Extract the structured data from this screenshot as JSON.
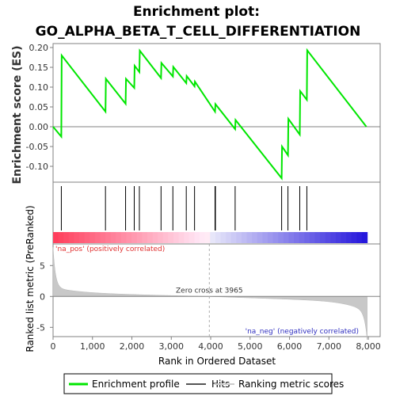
{
  "chart_data": {
    "type": "line",
    "title_line1": "Enrichment plot:",
    "title_line2": "GO_ALPHA_BETA_T_CELL_DIFFERENTIATION",
    "top_panel": {
      "ylabel": "Enrichment score (ES)",
      "ylim": [
        -0.14,
        0.21
      ],
      "yticks": [
        "0.20",
        "0.15",
        "0.10",
        "0.05",
        "0.00",
        "-0.05",
        "-0.10"
      ],
      "ytick_values": [
        0.2,
        0.15,
        0.1,
        0.05,
        0.0,
        -0.05,
        -0.1
      ],
      "series": [
        {
          "name": "Enrichment profile",
          "color": "#00e600",
          "x": [
            0,
            210,
            220,
            1330,
            1340,
            1840,
            1850,
            2060,
            2070,
            2190,
            2200,
            2740,
            2750,
            3040,
            3050,
            3380,
            3390,
            3590,
            3600,
            4110,
            4120,
            4620,
            4630,
            5800,
            5810,
            5960,
            5970,
            6260,
            6270,
            6440,
            6450,
            7950
          ],
          "y": [
            0.0,
            -0.025,
            0.18,
            0.038,
            0.121,
            0.058,
            0.121,
            0.098,
            0.154,
            0.138,
            0.192,
            0.123,
            0.161,
            0.127,
            0.151,
            0.11,
            0.128,
            0.102,
            0.114,
            0.038,
            0.057,
            -0.006,
            0.017,
            -0.13,
            -0.05,
            -0.072,
            0.02,
            -0.02,
            0.09,
            0.068,
            0.193,
            0.0
          ]
        }
      ]
    },
    "hits": [
      210,
      1330,
      1840,
      2060,
      2190,
      2740,
      3040,
      3380,
      3590,
      4110,
      4120,
      4620,
      5800,
      5960,
      6260,
      6440
    ],
    "bottom_panel": {
      "ylabel": "Ranked list metric (PreRanked)",
      "xlabel": "Rank in Ordered Dataset",
      "ylim": [
        -6.5,
        8.5
      ],
      "yticks": [
        "5",
        "0",
        "-5"
      ],
      "ytick_values": [
        5,
        0,
        -5
      ],
      "xlim": [
        0,
        8300
      ],
      "xticks": [
        "0",
        "1,000",
        "2,000",
        "3,000",
        "4,000",
        "5,000",
        "6,000",
        "7,000",
        "8,000"
      ],
      "xtick_values": [
        0,
        1000,
        2000,
        3000,
        4000,
        5000,
        6000,
        7000,
        8000
      ],
      "zero_cross": 3965,
      "zero_cross_label": "Zero cross at 3965",
      "pos_label": "'na_pos' (positively correlated)",
      "neg_label": "'na_neg' (negatively correlated)",
      "n_genes": 7970
    },
    "legend": [
      {
        "label": "Enrichment profile",
        "color": "#00e600"
      },
      {
        "label": "Hits",
        "color": "#555555"
      },
      {
        "label": "Ranking metric scores",
        "color": "#cccccc"
      }
    ]
  }
}
